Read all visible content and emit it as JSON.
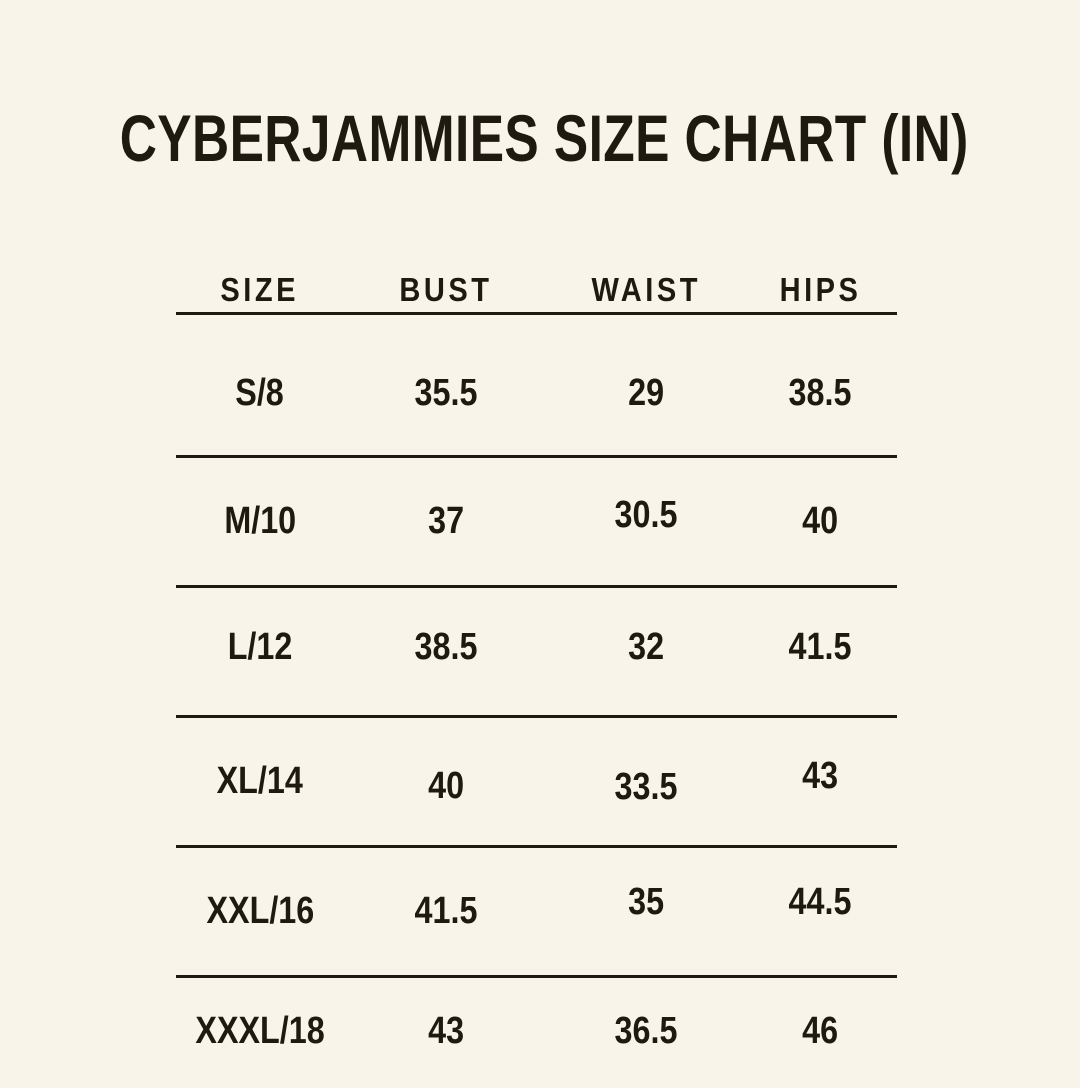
{
  "colors": {
    "background": "#F8F4E9",
    "text": "#1E1A10",
    "rule_line": "#1E1A10"
  },
  "chart_data": {
    "type": "table",
    "title": "CYBERJAMMIES SIZE CHART (IN)",
    "units_label": "IN",
    "columns": [
      "SIZE",
      "BUST",
      "WAIST",
      "HIPS"
    ],
    "rows": [
      [
        "S/8",
        "35.5",
        "29",
        "38.5"
      ],
      [
        "M/10",
        "37",
        "30.5",
        "40"
      ],
      [
        "L/12",
        "38.5",
        "32",
        "41.5"
      ],
      [
        "XL/14",
        "40",
        "33.5",
        "43"
      ],
      [
        "XXL/16",
        "41.5",
        "35",
        "44.5"
      ],
      [
        "XXXL/18",
        "43",
        "36.5",
        "46"
      ]
    ]
  }
}
